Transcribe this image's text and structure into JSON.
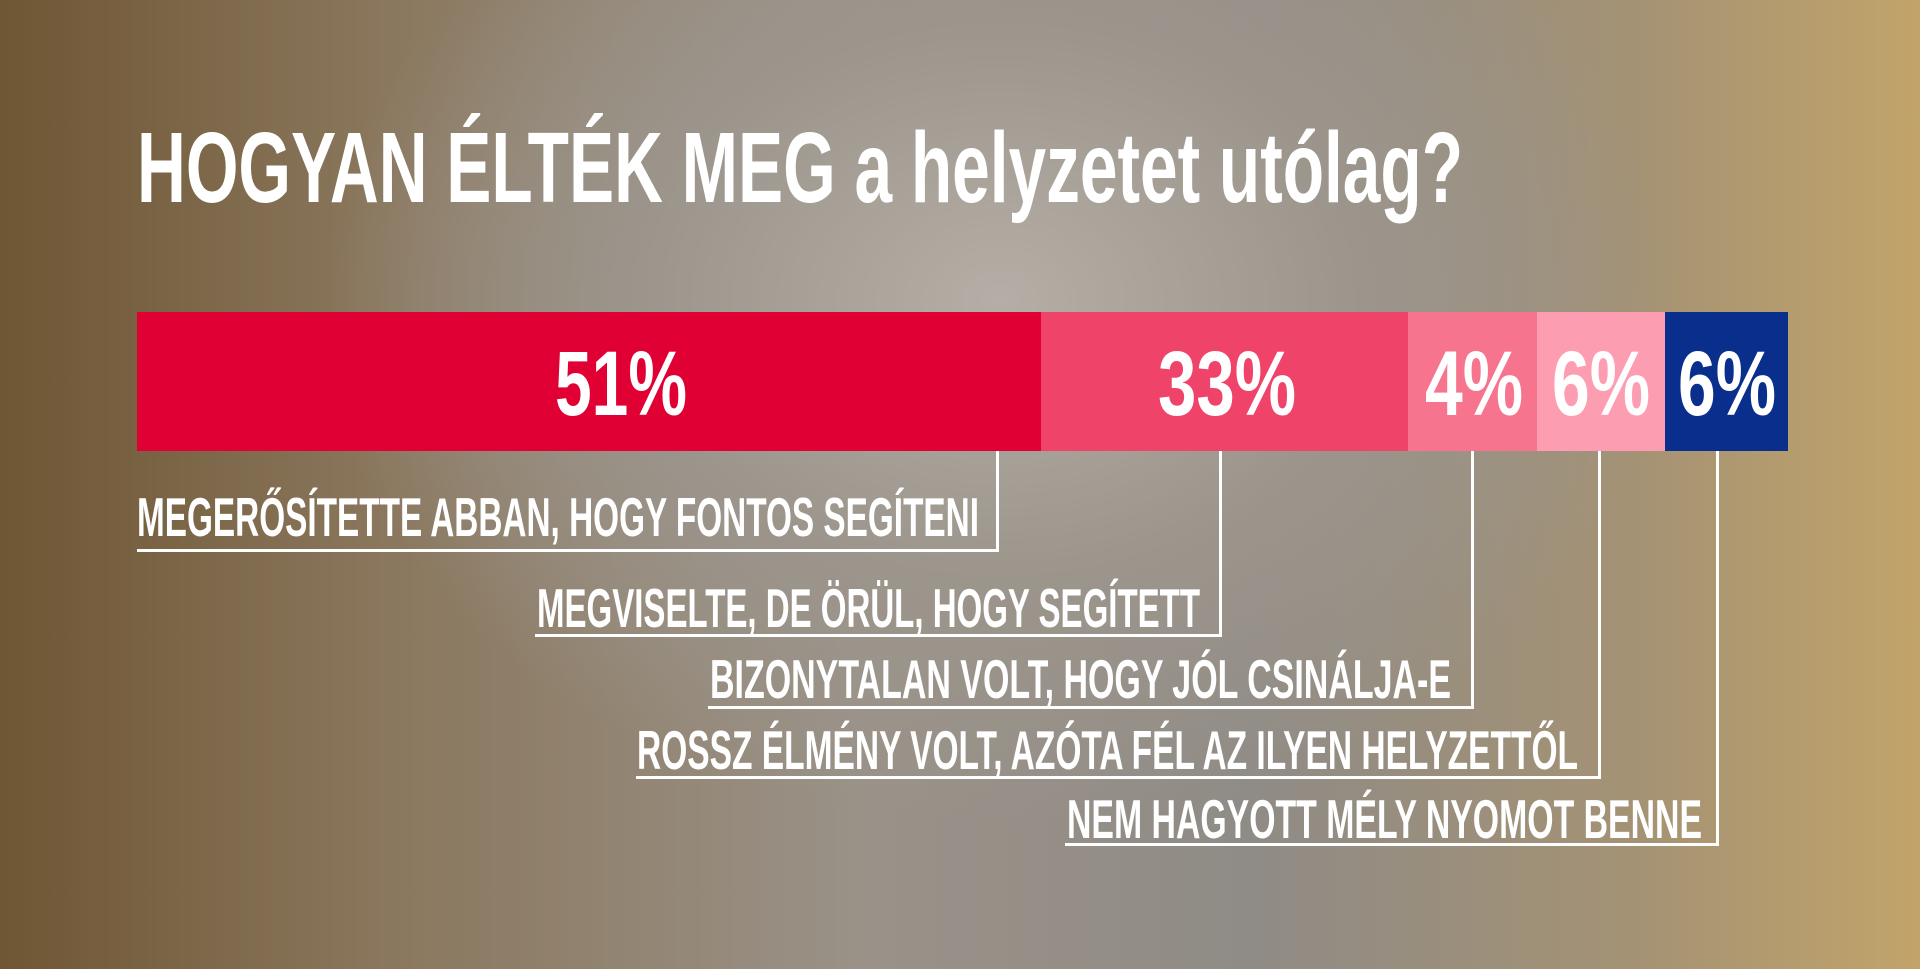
{
  "chart_data": {
    "type": "bar",
    "orientation": "horizontal-stacked",
    "title": "HOGYAN ÉLTÉK MEG a helyzetet utólag?",
    "unit": "%",
    "segments": [
      {
        "value": 51,
        "label": "51%",
        "category": "MEGERŐSÍTETTE ABBAN, HOGY FONTOS SEGÍTENI",
        "color": "#e00034"
      },
      {
        "value": 33,
        "label": "33%",
        "category": "MEGVISELTE, DE ÖRÜL, HOGY SEGÍTETT",
        "color": "#f0436a"
      },
      {
        "value": 4,
        "label": "4%",
        "category": "BIZONYTALAN VOLT, HOGY JÓL CSINÁLJA-E",
        "color": "#f7748f"
      },
      {
        "value": 6,
        "label": "6%",
        "category": "ROSSZ ÉLMÉNY VOLT, AZÓTA FÉL AZ ILYEN HELYZETTŐL",
        "color": "#fd9db1"
      },
      {
        "value": 6,
        "label": "6%",
        "category": "NEM HAGYOTT MÉLY NYOMOT BENNE",
        "color": "#0a2e8c"
      }
    ]
  }
}
